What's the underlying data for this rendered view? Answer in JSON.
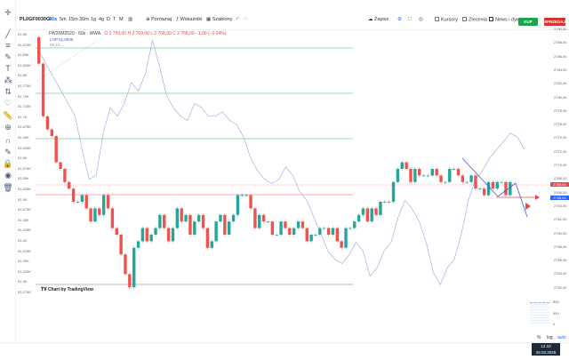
{
  "toolbar": {
    "symbol": "PL0GF0030GI",
    "timeframes": [
      "60s",
      "5m",
      "15m",
      "30m",
      "1g",
      "4g",
      "D",
      "T",
      "M"
    ],
    "active_timeframe": "60s",
    "compare_label": "Porównaj",
    "indicators_label": "Wskaźniki",
    "templates_label": "Szablony",
    "save_label": "Zapisz",
    "checks": [
      {
        "label": "Kursory",
        "checked": false
      },
      {
        "label": "Zlecenia",
        "checked": false
      },
      {
        "label": "News i dywidendy",
        "checked": true
      }
    ],
    "buy_label": "KUP",
    "sell_label": "SPRZEDAJ"
  },
  "legend": {
    "title": "FW20M2520 · 60s · WWA",
    "ohlc": "O 2 769,00  H 2 769,00  L 2 768,00  C 2 768,00  −1,00 (−0,04%)",
    "series2": "LOP  51,094K",
    "series3": "89,10  ..."
  },
  "left_axis_labels": [
    "51,9K",
    "51,875K",
    "51,85K",
    "51,825K",
    "51,8K",
    "51,775K",
    "51,75K",
    "51,725K",
    "51,7K",
    "51,675K",
    "51,65K",
    "51,625K",
    "51,6K",
    "51,575K",
    "51,55K",
    "51,525K",
    "51,5K",
    "51,475K",
    "51,45K",
    "51,425K",
    "51,4K",
    "51,375K",
    "51,35K",
    "51,325K",
    "51,3K",
    "51,275K"
  ],
  "right_axis_labels": [
    "2790,00",
    "2788,00",
    "2786,00",
    "2784,00",
    "2782,00",
    "2780,00",
    "2778,00",
    "2776,00",
    "2774,00",
    "2772,00",
    "2770,00",
    "2768,00",
    "2766,00",
    "2764,00",
    "2762,00",
    "2760,00",
    "2758,00",
    "2756,00",
    "2754,00",
    "2752,00"
  ],
  "price_tags": [
    {
      "label": "2768,00",
      "color": "#e24b4b"
    },
    {
      "label": "2766,00",
      "color": "#2962ff"
    }
  ],
  "sub_pane_labels": [
    "800",
    "400",
    "0"
  ],
  "tv_logo_label": "Chart by TradingView",
  "bottom": {
    "percent": "%",
    "log": "log",
    "auto": "auto"
  },
  "clock": {
    "time": "12:10",
    "date": "26.03.2025"
  },
  "colors": {
    "up": "#26a69a",
    "down": "#ef5350",
    "line": "#9fb3e6",
    "hline": "#4caf50"
  },
  "chart_data": {
    "type": "candlestick",
    "candles_c": [
      2786,
      2778,
      2776,
      2775,
      2771,
      2770,
      2768,
      2767,
      2765,
      2765,
      2766,
      2764,
      2762,
      2764,
      2763,
      2766,
      2764,
      2761,
      2760,
      2757,
      2754,
      2752,
      2758,
      2759,
      2761,
      2759,
      2760,
      2761,
      2763,
      2761,
      2759,
      2761,
      2764,
      2762,
      2763,
      2760,
      2762,
      2763,
      2761,
      2758,
      2759,
      2762,
      2763,
      2760,
      2762,
      2763,
      2766,
      2766,
      2766,
      2764,
      2761,
      2763,
      2762,
      2762,
      2760,
      2760,
      2762,
      2761,
      2760,
      2761,
      2762,
      2761,
      2759,
      2760,
      2760,
      2761,
      2761,
      2760,
      2761,
      2759,
      2758,
      2761,
      2761,
      2762,
      2763,
      2764,
      2762,
      2764,
      2763,
      2765,
      2765,
      2765,
      2768,
      2770,
      2771,
      2770,
      2768,
      2770,
      2769,
      2769,
      2769,
      2770,
      2769,
      2768,
      2768,
      2770,
      2770,
      2769,
      2768,
      2768,
      2769,
      2767,
      2767,
      2766,
      2768,
      2767,
      2768,
      2768,
      2766,
      2768
    ],
    "line_y": [
      51.85,
      51.82,
      51.79,
      51.76,
      51.73,
      51.7,
      51.62,
      51.55,
      51.56,
      51.66,
      51.72,
      51.7,
      51.73,
      51.78,
      51.76,
      51.8,
      51.88,
      51.82,
      51.75,
      51.72,
      51.7,
      51.69,
      51.73,
      51.72,
      51.7,
      51.7,
      51.71,
      51.69,
      51.68,
      51.65,
      51.6,
      51.57,
      51.55,
      51.54,
      51.55,
      51.58,
      51.56,
      51.52,
      51.5,
      51.46,
      51.42,
      51.38,
      51.36,
      51.35,
      51.37,
      51.4,
      51.38,
      51.32,
      51.34,
      51.38,
      51.4,
      51.46,
      51.5,
      51.48,
      51.45,
      51.4,
      51.33,
      51.3,
      51.34,
      51.36,
      51.42,
      51.5,
      51.55,
      51.57,
      51.6,
      51.62,
      51.64,
      51.66,
      51.65,
      51.62
    ]
  }
}
